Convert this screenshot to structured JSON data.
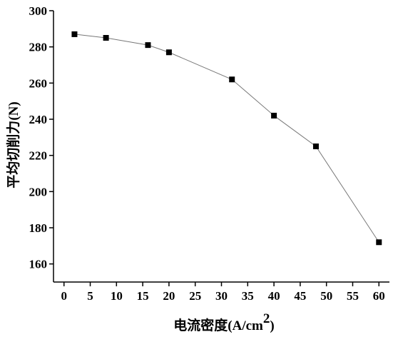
{
  "chart_data": {
    "type": "line",
    "xlabel": "电流密度",
    "xlabel_unit": "(A/cm",
    "xlabel_unit_sup": "2",
    "xlabel_unit_close": ")",
    "ylabel": "平均切削力",
    "ylabel_unit": "(N)",
    "xlim": [
      -2,
      62
    ],
    "ylim": [
      150,
      300
    ],
    "xticks": [
      0,
      5,
      10,
      15,
      20,
      25,
      30,
      35,
      40,
      45,
      50,
      55,
      60
    ],
    "yticks": [
      160,
      180,
      200,
      220,
      240,
      260,
      280,
      300
    ],
    "grid": false,
    "marker": "square",
    "series": [
      {
        "x": [
          2,
          8,
          16,
          20,
          32,
          40,
          48,
          60
        ],
        "y": [
          287,
          285,
          281,
          277,
          262,
          242,
          225,
          172
        ]
      }
    ],
    "colors": {
      "line": "#777777",
      "marker": "#000000",
      "axis": "#000000"
    }
  }
}
